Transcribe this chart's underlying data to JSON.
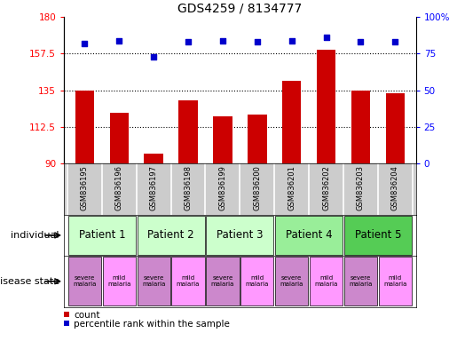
{
  "title": "GDS4259 / 8134777",
  "samples": [
    "GSM836195",
    "GSM836196",
    "GSM836197",
    "GSM836198",
    "GSM836199",
    "GSM836200",
    "GSM836201",
    "GSM836202",
    "GSM836203",
    "GSM836204"
  ],
  "counts": [
    135,
    121,
    96,
    129,
    119,
    120,
    141,
    160,
    135,
    133
  ],
  "percentiles": [
    82,
    84,
    73,
    83,
    84,
    83,
    84,
    86,
    83,
    83
  ],
  "ymin": 90,
  "ymax": 180,
  "yticks": [
    90,
    112.5,
    135,
    157.5,
    180
  ],
  "ytick_labels": [
    "90",
    "112.5",
    "135",
    "157.5",
    "180"
  ],
  "y2min": 0,
  "y2max": 100,
  "y2ticks": [
    0,
    25,
    50,
    75,
    100
  ],
  "y2tick_labels": [
    "0",
    "25",
    "50",
    "75",
    "100%"
  ],
  "bar_color": "#cc0000",
  "dot_color": "#0000cc",
  "patients": [
    {
      "label": "Patient 1",
      "cols": [
        0,
        1
      ],
      "color": "#ccffcc"
    },
    {
      "label": "Patient 2",
      "cols": [
        2,
        3
      ],
      "color": "#ccffcc"
    },
    {
      "label": "Patient 3",
      "cols": [
        4,
        5
      ],
      "color": "#ccffcc"
    },
    {
      "label": "Patient 4",
      "cols": [
        6,
        7
      ],
      "color": "#99ee99"
    },
    {
      "label": "Patient 5",
      "cols": [
        8,
        9
      ],
      "color": "#55cc55"
    }
  ],
  "disease_states": [
    {
      "label": "severe\nmalaria",
      "col": 0,
      "color": "#cc88cc"
    },
    {
      "label": "mild\nmalaria",
      "col": 1,
      "color": "#ff99ff"
    },
    {
      "label": "severe\nmalaria",
      "col": 2,
      "color": "#cc88cc"
    },
    {
      "label": "mild\nmalaria",
      "col": 3,
      "color": "#ff99ff"
    },
    {
      "label": "severe\nmalaria",
      "col": 4,
      "color": "#cc88cc"
    },
    {
      "label": "mild\nmalaria",
      "col": 5,
      "color": "#ff99ff"
    },
    {
      "label": "severe\nmalaria",
      "col": 6,
      "color": "#cc88cc"
    },
    {
      "label": "mild\nmalaria",
      "col": 7,
      "color": "#ff99ff"
    },
    {
      "label": "severe\nmalaria",
      "col": 8,
      "color": "#cc88cc"
    },
    {
      "label": "mild\nmalaria",
      "col": 9,
      "color": "#ff99ff"
    }
  ],
  "legend_count_label": "count",
  "legend_percentile_label": "percentile rank within the sample",
  "individual_label": "individual",
  "disease_state_label": "disease state",
  "sample_bg_color": "#cccccc",
  "sample_border_color": "#ffffff"
}
